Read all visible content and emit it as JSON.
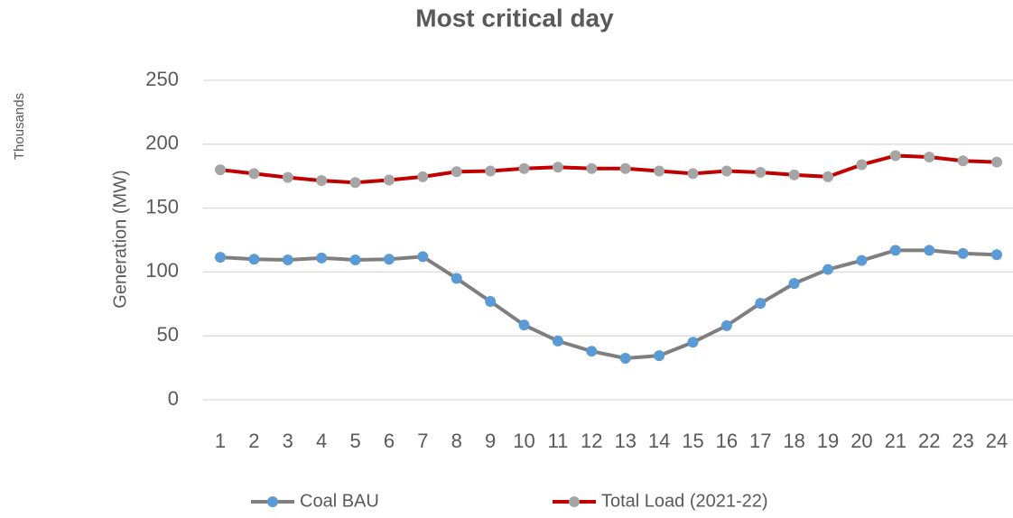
{
  "chart_data": {
    "type": "line",
    "title": "Most critical day",
    "ylabel": "Generation (MW)",
    "y_units": "Thousands",
    "categories": [
      "1",
      "2",
      "3",
      "4",
      "5",
      "6",
      "7",
      "8",
      "9",
      "10",
      "11",
      "12",
      "13",
      "14",
      "15",
      "16",
      "17",
      "18",
      "19",
      "20",
      "21",
      "22",
      "23",
      "24"
    ],
    "series": [
      {
        "name": "Coal BAU",
        "color": "#7f7f7f",
        "marker_color": "#5b9bd5",
        "values": [
          111.5,
          110,
          109.5,
          111,
          109.5,
          110,
          112,
          95,
          77,
          58.5,
          46,
          38,
          32.5,
          34.5,
          45,
          58,
          75.5,
          91,
          102,
          109,
          117,
          117,
          114.5,
          113.5
        ]
      },
      {
        "name": "Total Load (2021-22)",
        "color": "#c00000",
        "marker_color": "#a5a5a5",
        "values": [
          180,
          177,
          174,
          171.5,
          170,
          172,
          174.5,
          178.5,
          179,
          181,
          182,
          181,
          181,
          179,
          177,
          179,
          178,
          176,
          174.5,
          184,
          191,
          190,
          187,
          186
        ]
      }
    ],
    "ylim": [
      0,
      250
    ],
    "yticks": [
      0,
      50,
      100,
      150,
      200,
      250
    ],
    "grid": true,
    "legend": "bottom"
  }
}
